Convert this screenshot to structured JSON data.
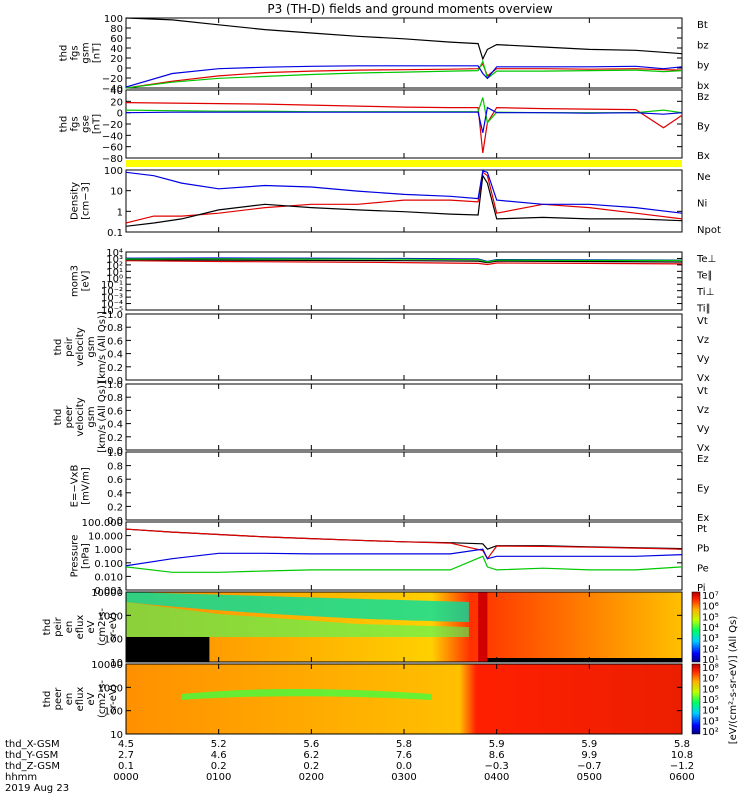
{
  "title": "P3 (TH-D) fields and ground moments overview",
  "colors": {
    "black": "#000000",
    "red": "#e00000",
    "green": "#00c800",
    "blue": "#0000e0",
    "yellow": "#ffff00"
  },
  "panels": [
    {
      "id": "fgs-gsm",
      "ylabel": [
        "thd",
        "fgs",
        "gsm",
        "[nT]"
      ],
      "ticks": [
        "100",
        "80",
        "60",
        "40",
        "20",
        "0",
        "−20",
        "−40"
      ],
      "legend": [
        {
          "text": "Bt",
          "color": "black"
        },
        {
          "text": "bz",
          "color": "red"
        },
        {
          "text": "by",
          "color": "green"
        },
        {
          "text": "bx",
          "color": "blue"
        }
      ]
    },
    {
      "id": "fgs-gse",
      "ylabel": [
        "thd",
        "fgs",
        "gse",
        "[nT]"
      ],
      "ticks": [
        "40",
        "20",
        "0",
        "−20",
        "−40",
        "−60",
        "−80"
      ],
      "legend": [
        {
          "text": "Bz",
          "color": "red"
        },
        {
          "text": "By",
          "color": "green"
        },
        {
          "text": "Bx",
          "color": "blue"
        }
      ]
    },
    {
      "id": "density",
      "ylabel": [
        "Density",
        "[cm−3]"
      ],
      "ticks": [
        "100",
        "10",
        "1",
        "0.1"
      ],
      "legend": [
        {
          "text": "Ne",
          "color": "red"
        },
        {
          "text": "Ni",
          "color": "black"
        },
        {
          "text": "Npot",
          "color": "blue"
        }
      ]
    },
    {
      "id": "temperature",
      "ylabel": [
        "mom3",
        "[eV]"
      ],
      "ticks": [
        "10⁴",
        "10³",
        "10²",
        "10¹",
        "10⁰",
        "10⁻¹",
        "10⁻²",
        "10⁻³",
        "10⁻⁴",
        "10⁻⁵"
      ],
      "legend": [
        {
          "text": "Te⊥",
          "color": "red"
        },
        {
          "text": "Te∥",
          "color": "black"
        },
        {
          "text": "Ti⊥",
          "color": "blue"
        },
        {
          "text": "Ti∥",
          "color": "green"
        }
      ]
    },
    {
      "id": "peir-velocity",
      "ylabel": [
        "thd",
        "peir",
        "velocity",
        "gsm",
        "[km/s (All Qs)]"
      ],
      "ticks": [
        "1.0",
        "0.8",
        "0.6",
        "0.4",
        "0.2",
        "0.0"
      ],
      "legend": [
        {
          "text": "Vt",
          "color": "black"
        },
        {
          "text": "Vz",
          "color": "red"
        },
        {
          "text": "Vy",
          "color": "green"
        },
        {
          "text": "Vx",
          "color": "blue"
        }
      ]
    },
    {
      "id": "peer-velocity",
      "ylabel": [
        "thd",
        "peer",
        "velocity",
        "gsm",
        "[km/s (All Qs)]"
      ],
      "ticks": [
        "1.0",
        "0.8",
        "0.6",
        "0.4",
        "0.2",
        "0.0"
      ],
      "legend": [
        {
          "text": "Vt",
          "color": "black"
        },
        {
          "text": "Vz",
          "color": "red"
        },
        {
          "text": "Vy",
          "color": "green"
        },
        {
          "text": "Vx",
          "color": "blue"
        }
      ]
    },
    {
      "id": "efield",
      "ylabel": [
        "E=−VxB",
        "[mV/m]"
      ],
      "ticks": [
        "1.0",
        "0.8",
        "0.6",
        "0.4",
        "0.2",
        "0.0"
      ],
      "legend": [
        {
          "text": "Ez",
          "color": "red"
        },
        {
          "text": "Ey",
          "color": "green"
        },
        {
          "text": "Ex",
          "color": "blue"
        }
      ]
    },
    {
      "id": "pressure",
      "ylabel": [
        "Pressure",
        "[nPa]"
      ],
      "ticks": [
        "100.000",
        "10.000",
        "1.000",
        "0.100",
        "0.010",
        "0.001"
      ],
      "legend": [
        {
          "text": "Pt",
          "color": "black"
        },
        {
          "text": "Pb",
          "color": "red"
        },
        {
          "text": "Pe",
          "color": "green"
        },
        {
          "text": "Pi",
          "color": "blue"
        }
      ]
    },
    {
      "id": "peir-spectrogram",
      "ylabel": [
        "thd",
        "peir",
        "en",
        "eflux",
        "eV",
        "(cm2-s-",
        "sr-eV)"
      ],
      "ticks": [
        "10000",
        "1000",
        "100",
        "10"
      ],
      "colorbar": [
        "10⁷",
        "10⁶",
        "10⁵",
        "10⁴",
        "10³",
        "10²",
        "10¹"
      ]
    },
    {
      "id": "peer-spectrogram",
      "ylabel": [
        "thd",
        "peer",
        "en",
        "eflux",
        "eV",
        "(cm2-s-",
        "sr-eV)"
      ],
      "ticks": [
        "10000",
        "1000",
        "100",
        "10"
      ],
      "colorbar": [
        "10⁸",
        "10⁷",
        "10⁶",
        "10⁵",
        "10⁴",
        "10³",
        "10²"
      ]
    }
  ],
  "colorbar_label": "[eV/(cm²-s-sr-eV)] (All Qs)",
  "xaxis": {
    "rows": [
      {
        "label": "thd_X-GSM",
        "values": [
          "4.5",
          "5.2",
          "5.6",
          "5.8",
          "5.9",
          "5.9",
          "5.8"
        ]
      },
      {
        "label": "thd_Y-GSM",
        "values": [
          "2.7",
          "4.6",
          "6.2",
          "7.6",
          "8.6",
          "9.9",
          "10.8"
        ]
      },
      {
        "label": "thd_Z-GSM",
        "values": [
          "0.1",
          "0.2",
          "0.2",
          "0.0",
          "−0.3",
          "−0.7",
          "−1.2"
        ]
      },
      {
        "label": "hhmm",
        "values": [
          "0000",
          "0100",
          "0200",
          "0300",
          "0400",
          "0500",
          "0600"
        ]
      }
    ],
    "date": "2019 Aug 23"
  },
  "chart_data": [
    {
      "type": "line",
      "name": "fgs-gsm",
      "x": [
        0,
        0.5,
        1,
        1.5,
        2,
        2.5,
        3,
        3.5,
        3.8,
        3.85,
        3.9,
        4,
        4.5,
        5,
        5.5,
        5.8,
        6
      ],
      "ylim": [
        -40,
        105
      ],
      "series": [
        {
          "name": "Bt",
          "values": [
            110,
            101,
            91,
            81,
            74,
            67,
            62,
            55,
            52,
            20,
            40,
            50,
            45,
            40,
            38,
            34,
            31
          ]
        },
        {
          "name": "bz",
          "values": [
            -42,
            -26,
            -15,
            -8,
            -5,
            -3,
            -2,
            -1,
            0,
            10,
            -15,
            0,
            0,
            -1,
            0,
            -2,
            -3
          ]
        },
        {
          "name": "by",
          "values": [
            -42,
            -28,
            -20,
            -16,
            -12,
            -9,
            -7,
            -5,
            -4,
            15,
            -20,
            -5,
            -5,
            -4,
            -3,
            -6,
            -4
          ]
        },
        {
          "name": "bx",
          "values": [
            -38,
            -10,
            0,
            3,
            5,
            6,
            6,
            6,
            6,
            -10,
            -20,
            4,
            4,
            4,
            5,
            0,
            4
          ]
        }
      ]
    },
    {
      "type": "line",
      "name": "fgs-gse",
      "x": [
        0,
        0.5,
        1,
        1.5,
        2,
        2.5,
        3,
        3.5,
        3.8,
        3.85,
        3.9,
        4,
        4.5,
        5,
        5.5,
        5.8,
        6
      ],
      "ylim": [
        -90,
        45
      ],
      "series": [
        {
          "name": "Bz",
          "values": [
            20,
            19,
            18,
            17,
            15,
            13,
            11,
            10,
            10,
            -80,
            -20,
            10,
            8,
            7,
            6,
            -30,
            -5
          ]
        },
        {
          "name": "By",
          "values": [
            5,
            4,
            3,
            3,
            2,
            2,
            2,
            2,
            2,
            30,
            -20,
            1,
            0,
            0,
            0,
            5,
            0
          ]
        },
        {
          "name": "Bx",
          "values": [
            0,
            1,
            1,
            1,
            1,
            1,
            1,
            1,
            1,
            -40,
            10,
            0,
            0,
            -1,
            0,
            -3,
            0
          ]
        }
      ]
    },
    {
      "type": "line",
      "name": "density",
      "log": true,
      "x": [
        0,
        0.3,
        0.6,
        1,
        1.5,
        2,
        2.5,
        3,
        3.5,
        3.8,
        3.85,
        3.9,
        4,
        4.5,
        5,
        5.5,
        6
      ],
      "ylim": [
        0.1,
        200
      ],
      "series": [
        {
          "name": "Ne",
          "values": [
            0.3,
            0.7,
            0.7,
            1,
            2,
            3,
            3,
            5,
            5,
            4,
            150,
            100,
            1,
            3,
            2,
            1,
            0.5
          ]
        },
        {
          "name": "Ni",
          "values": [
            0.2,
            0.3,
            0.5,
            1.5,
            3,
            2,
            1.5,
            1.2,
            0.9,
            0.8,
            100,
            40,
            0.5,
            0.6,
            0.5,
            0.5,
            0.4
          ]
        },
        {
          "name": "Npot",
          "values": [
            150,
            100,
            40,
            20,
            30,
            25,
            15,
            10,
            8,
            6,
            180,
            150,
            5,
            3,
            3,
            2,
            1
          ]
        }
      ]
    },
    {
      "type": "line",
      "name": "temperature",
      "log": true,
      "x": [
        0,
        1,
        2,
        3,
        3.8,
        3.9,
        4,
        5,
        6
      ],
      "ylim": [
        1e-05,
        20000
      ],
      "series": [
        {
          "name": "Te⊥",
          "values": [
            800,
            600,
            500,
            400,
            300,
            200,
            350,
            300,
            250
          ]
        },
        {
          "name": "Te∥",
          "values": [
            1200,
            1000,
            900,
            800,
            700,
            400,
            700,
            600,
            500
          ]
        },
        {
          "name": "Ti⊥",
          "values": [
            2000,
            2200,
            2000,
            1800,
            1500,
            600,
            1200,
            1100,
            1000
          ]
        },
        {
          "name": "Ti∥",
          "values": [
            1500,
            1600,
            1500,
            1400,
            1200,
            500,
            1000,
            900,
            900
          ]
        }
      ]
    },
    {
      "type": "line",
      "name": "pressure",
      "log": true,
      "x": [
        0,
        0.5,
        1,
        1.5,
        2,
        2.5,
        3,
        3.5,
        3.85,
        3.9,
        4,
        4.5,
        5,
        5.5,
        6
      ],
      "ylim": [
        0.001,
        100
      ],
      "series": [
        {
          "name": "Pt",
          "values": [
            30,
            18,
            12,
            8,
            6,
            4.5,
            3.5,
            3,
            2.5,
            1,
            1.8,
            1.8,
            1.5,
            1.3,
            1.1
          ]
        },
        {
          "name": "Pb",
          "values": [
            30,
            18,
            12,
            8,
            6,
            4.5,
            3.5,
            2.8,
            0.8,
            0.2,
            1.7,
            1.6,
            1.4,
            1.2,
            1
          ]
        },
        {
          "name": "Pe",
          "values": [
            0.05,
            0.02,
            0.02,
            0.025,
            0.03,
            0.03,
            0.03,
            0.03,
            0.3,
            0.05,
            0.03,
            0.04,
            0.03,
            0.03,
            0.05
          ]
        },
        {
          "name": "Pi",
          "values": [
            0.06,
            0.2,
            0.5,
            0.5,
            0.45,
            0.45,
            0.45,
            0.45,
            1,
            0.2,
            0.3,
            0.3,
            0.3,
            0.3,
            0.4
          ]
        }
      ]
    },
    {
      "type": "heatmap",
      "name": "peir-spectrogram",
      "x": [
        0,
        6
      ],
      "ylim": [
        10,
        30000
      ]
    },
    {
      "type": "heatmap",
      "name": "peer-spectrogram",
      "x": [
        0,
        6
      ],
      "ylim": [
        10,
        30000
      ]
    }
  ]
}
